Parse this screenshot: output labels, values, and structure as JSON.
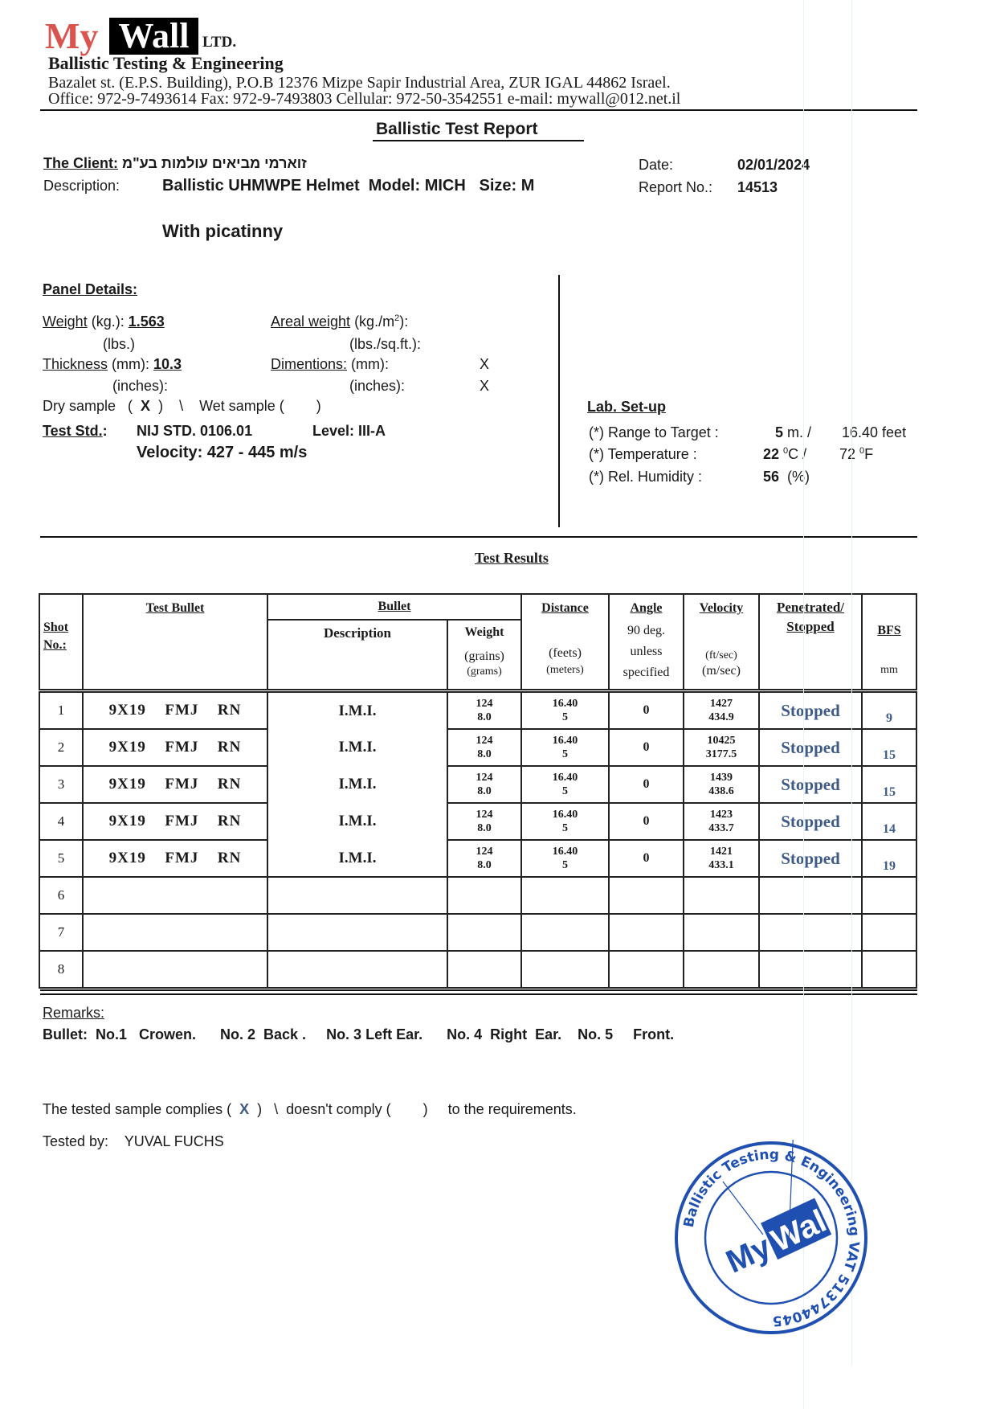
{
  "letterhead": {
    "logo_my": "My",
    "logo_wall": "Wall",
    "logo_ltd": "LTD.",
    "company": "Ballistic Testing & Engineering",
    "address": "Bazalet st. (E.P.S. Building), P.O.B 12376 Mizpe Sapir Industrial Area, ZUR IGAL 44862 Israel.",
    "contact": "Office: 972-9-7493614   Fax: 972-9-7493803   Cellular: 972-50-3542551   e-mail: mywall@012.net.il"
  },
  "report": {
    "title": "Ballistic Test Report",
    "client_label": "The Client:",
    "client_value": "זוארמי מביאים עולמות בע\"מ",
    "description_label": "Description:",
    "description_value": "Ballistic UHMWPE Helmet  Model: MICH   Size: M",
    "description_extra": "With picatinny",
    "date_label": "Date:",
    "date_value": "02/01/2024",
    "report_no_label": "Report No.:",
    "report_no_value": "14513"
  },
  "panel": {
    "heading": "Panel Details:",
    "weight_label": "Weight",
    "weight_unit": " (kg.): ",
    "weight_value": "1.563",
    "lbs_label": "(lbs.)",
    "areal_label": "Areal weight",
    "areal_unit": " (kg./m",
    "areal_sup": "2",
    "areal_end": "):",
    "areal_lbs": "(lbs./sq.ft.):",
    "thickness_label": "Thickness",
    "thickness_unit": " (mm): ",
    "thickness_value": "10.3",
    "thickness_inches": "(inches):",
    "dimentions_label": "Dimentions:",
    "dimentions_mm": " (mm):",
    "dimentions_inches": "(inches):",
    "dim_mm_value": "X",
    "dim_inches_value": "X",
    "dry_label": "Dry sample   (",
    "dry_value": "X",
    "dry_end": ")    \\    Wet sample (        )",
    "std_label": "Test Std.",
    "std_colon": ":",
    "std_value": "NIJ STD.  0106.01",
    "level": "Level: III-A",
    "velocity": "Velocity: 427 - 445 m/s"
  },
  "lab": {
    "heading": "Lab. Set-up",
    "range_label": "(*) Range to Target :",
    "range_m": "5",
    "range_m_unit": " m. /",
    "range_feet": "16.40 feet",
    "temp_label": "(*) Temperature :",
    "temp_c": "22",
    "temp_c_unit": "C /",
    "temp_f": "72",
    "temp_f_unit": "F",
    "deg": "0",
    "humidity_label": "(*) Rel. Humidity :",
    "humidity_value": "56",
    "humidity_unit": "(%)"
  },
  "results": {
    "heading": "Test Results",
    "headers": {
      "shot": "Shot",
      "shot2": "No.:",
      "test_bullet": "Test Bullet",
      "bullet": "Bullet",
      "description": "Description",
      "weight": "Weight",
      "weight_u1": "(grains)",
      "weight_u2": "(grams)",
      "distance": "Distance",
      "distance_u1": "(feets)",
      "distance_u2": "(meters)",
      "angle": "Angle",
      "angle_1": "90 deg.",
      "angle_2": "unless",
      "angle_3": "specified",
      "velocity": "Velocity",
      "velocity_u1": "(ft/sec)",
      "velocity_u2": "(m/sec)",
      "penetrated": "Penetrated/",
      "stopped": "Stopped",
      "bfs": "BFS",
      "bfs_unit": "mm"
    },
    "rows": [
      {
        "shot": "1",
        "bullet": "9X19  FMJ  RN",
        "desc": "I.M.I.",
        "grains": "124",
        "grams": "8.0",
        "feet": "16.40",
        "meters": "5",
        "angle": "0",
        "fps": "1427",
        "mps": "434.9",
        "result": "Stopped",
        "bfs": "9"
      },
      {
        "shot": "2",
        "bullet": "9X19  FMJ  RN",
        "desc": "I.M.I.",
        "grains": "124",
        "grams": "8.0",
        "feet": "16.40",
        "meters": "5",
        "angle": "0",
        "fps": "10425",
        "mps": "3177.5",
        "result": "Stopped",
        "bfs": "15"
      },
      {
        "shot": "3",
        "bullet": "9X19  FMJ  RN",
        "desc": "I.M.I.",
        "grains": "124",
        "grams": "8.0",
        "feet": "16.40",
        "meters": "5",
        "angle": "0",
        "fps": "1439",
        "mps": "438.6",
        "result": "Stopped",
        "bfs": "15"
      },
      {
        "shot": "4",
        "bullet": "9X19  FMJ  RN",
        "desc": "I.M.I.",
        "grains": "124",
        "grams": "8.0",
        "feet": "16.40",
        "meters": "5",
        "angle": "0",
        "fps": "1423",
        "mps": "433.7",
        "result": "Stopped",
        "bfs": "14"
      },
      {
        "shot": "5",
        "bullet": "9X19  FMJ  RN",
        "desc": "I.M.I.",
        "grains": "124",
        "grams": "8.0",
        "feet": "16.40",
        "meters": "5",
        "angle": "0",
        "fps": "1421",
        "mps": "433.1",
        "result": "Stopped",
        "bfs": "19"
      },
      {
        "shot": "6"
      },
      {
        "shot": "7"
      },
      {
        "shot": "8"
      }
    ]
  },
  "remarks": {
    "label": "Remarks:",
    "text": "Bullet:  No.1   Crowen.      No. 2  Back .     No. 3 Left Ear.      No. 4  Right  Ear.    No. 5     Front."
  },
  "compliance": {
    "prefix": "The tested sample complies (",
    "mark": "X",
    "suffix": ")   \\  doesn't comply (        )     to the requirements.",
    "tested_by_label": "Tested by:",
    "tested_by_value": "YUVAL FUCHS"
  },
  "stamp": {
    "ring_text": "Ballistic Testing & Engineering VAT 513744045",
    "logo": "MyWall"
  },
  "colors": {
    "logo_red": "#d9534f",
    "stopped_blue": "#3e5b86",
    "stamp_blue": "#1f4fb0"
  }
}
